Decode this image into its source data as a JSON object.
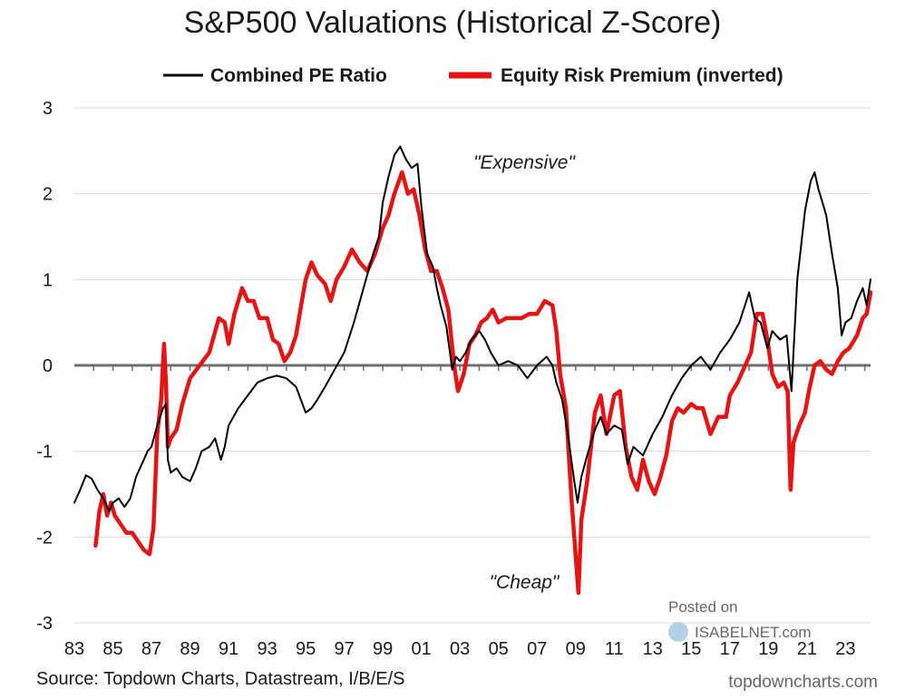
{
  "chart_data": {
    "type": "line",
    "title": "S&P500 Valuations (Historical Z-Score)",
    "ylim": [
      -3,
      3
    ],
    "yticks": [
      "3",
      "2",
      "1",
      "0",
      "-1",
      "-2",
      "-3"
    ],
    "xticks": [
      "83",
      "85",
      "87",
      "89",
      "91",
      "93",
      "95",
      "97",
      "99",
      "01",
      "03",
      "05",
      "07",
      "09",
      "11",
      "13",
      "15",
      "17",
      "19",
      "21",
      "23"
    ],
    "xrange": [
      1983,
      2024.3
    ],
    "grid": true,
    "legend_position": "top",
    "annotations": [
      "\"Expensive\"",
      "\"Cheap\""
    ],
    "series": [
      {
        "name": "Combined PE Ratio",
        "color": "#000000",
        "points": [
          [
            1983.0,
            -1.6
          ],
          [
            1983.3,
            -1.45
          ],
          [
            1983.6,
            -1.28
          ],
          [
            1983.9,
            -1.32
          ],
          [
            1984.2,
            -1.45
          ],
          [
            1984.5,
            -1.55
          ],
          [
            1984.8,
            -1.7
          ],
          [
            1985.0,
            -1.6
          ],
          [
            1985.3,
            -1.55
          ],
          [
            1985.6,
            -1.65
          ],
          [
            1985.9,
            -1.55
          ],
          [
            1986.2,
            -1.3
          ],
          [
            1986.5,
            -1.15
          ],
          [
            1986.8,
            -1.0
          ],
          [
            1987.0,
            -0.95
          ],
          [
            1987.3,
            -0.7
          ],
          [
            1987.6,
            -0.5
          ],
          [
            1987.75,
            -0.45
          ],
          [
            1987.85,
            -1.1
          ],
          [
            1988.0,
            -1.25
          ],
          [
            1988.3,
            -1.2
          ],
          [
            1988.6,
            -1.3
          ],
          [
            1989.0,
            -1.35
          ],
          [
            1989.3,
            -1.2
          ],
          [
            1989.6,
            -1.0
          ],
          [
            1990.0,
            -0.95
          ],
          [
            1990.3,
            -0.85
          ],
          [
            1990.6,
            -1.1
          ],
          [
            1990.8,
            -0.95
          ],
          [
            1991.0,
            -0.7
          ],
          [
            1991.5,
            -0.5
          ],
          [
            1992.0,
            -0.35
          ],
          [
            1992.5,
            -0.2
          ],
          [
            1993.0,
            -0.15
          ],
          [
            1993.5,
            -0.12
          ],
          [
            1994.0,
            -0.15
          ],
          [
            1994.5,
            -0.25
          ],
          [
            1995.0,
            -0.55
          ],
          [
            1995.3,
            -0.5
          ],
          [
            1995.6,
            -0.4
          ],
          [
            1996.0,
            -0.25
          ],
          [
            1996.5,
            -0.05
          ],
          [
            1997.0,
            0.15
          ],
          [
            1997.5,
            0.5
          ],
          [
            1998.0,
            0.9
          ],
          [
            1998.5,
            1.3
          ],
          [
            1998.8,
            1.5
          ],
          [
            1999.0,
            1.9
          ],
          [
            1999.3,
            2.2
          ],
          [
            1999.6,
            2.45
          ],
          [
            1999.9,
            2.55
          ],
          [
            2000.2,
            2.4
          ],
          [
            2000.5,
            2.3
          ],
          [
            2000.8,
            2.35
          ],
          [
            2001.0,
            1.85
          ],
          [
            2001.3,
            1.3
          ],
          [
            2001.6,
            1.15
          ],
          [
            2001.8,
            0.9
          ],
          [
            2002.0,
            0.7
          ],
          [
            2002.3,
            0.45
          ],
          [
            2002.6,
            -0.05
          ],
          [
            2002.8,
            0.1
          ],
          [
            2003.0,
            0.05
          ],
          [
            2003.3,
            0.15
          ],
          [
            2003.6,
            0.3
          ],
          [
            2004.0,
            0.4
          ],
          [
            2004.3,
            0.3
          ],
          [
            2004.6,
            0.15
          ],
          [
            2005.0,
            0.0
          ],
          [
            2005.5,
            0.05
          ],
          [
            2006.0,
            0.0
          ],
          [
            2006.5,
            -0.15
          ],
          [
            2007.0,
            0.0
          ],
          [
            2007.5,
            0.1
          ],
          [
            2007.8,
            0.0
          ],
          [
            2008.0,
            -0.2
          ],
          [
            2008.3,
            -0.4
          ],
          [
            2008.6,
            -0.8
          ],
          [
            2008.9,
            -1.3
          ],
          [
            2009.1,
            -1.6
          ],
          [
            2009.3,
            -1.3
          ],
          [
            2009.6,
            -1.05
          ],
          [
            2010.0,
            -0.75
          ],
          [
            2010.3,
            -0.6
          ],
          [
            2010.6,
            -0.8
          ],
          [
            2011.0,
            -0.7
          ],
          [
            2011.4,
            -0.75
          ],
          [
            2011.7,
            -1.15
          ],
          [
            2012.0,
            -0.95
          ],
          [
            2012.5,
            -1.05
          ],
          [
            2013.0,
            -0.8
          ],
          [
            2013.5,
            -0.6
          ],
          [
            2014.0,
            -0.35
          ],
          [
            2014.5,
            -0.15
          ],
          [
            2015.0,
            0.0
          ],
          [
            2015.5,
            0.1
          ],
          [
            2016.0,
            -0.05
          ],
          [
            2016.5,
            0.15
          ],
          [
            2017.0,
            0.3
          ],
          [
            2017.5,
            0.5
          ],
          [
            2018.0,
            0.85
          ],
          [
            2018.3,
            0.55
          ],
          [
            2018.6,
            0.5
          ],
          [
            2018.95,
            0.2
          ],
          [
            2019.2,
            0.4
          ],
          [
            2019.6,
            0.3
          ],
          [
            2019.95,
            0.35
          ],
          [
            2020.2,
            -0.3
          ],
          [
            2020.5,
            1.0
          ],
          [
            2020.7,
            1.4
          ],
          [
            2020.9,
            1.8
          ],
          [
            2021.2,
            2.15
          ],
          [
            2021.4,
            2.25
          ],
          [
            2021.6,
            2.05
          ],
          [
            2021.8,
            1.9
          ],
          [
            2022.0,
            1.75
          ],
          [
            2022.3,
            1.3
          ],
          [
            2022.6,
            0.9
          ],
          [
            2022.8,
            0.35
          ],
          [
            2023.0,
            0.5
          ],
          [
            2023.3,
            0.55
          ],
          [
            2023.6,
            0.75
          ],
          [
            2023.9,
            0.9
          ],
          [
            2024.1,
            0.7
          ],
          [
            2024.3,
            1.0
          ]
        ]
      },
      {
        "name": "Equity Risk Premium (inverted)",
        "color": "#e81414",
        "points": [
          [
            1984.1,
            -2.1
          ],
          [
            1984.3,
            -1.7
          ],
          [
            1984.5,
            -1.5
          ],
          [
            1984.7,
            -1.75
          ],
          [
            1984.9,
            -1.6
          ],
          [
            1985.1,
            -1.75
          ],
          [
            1985.4,
            -1.85
          ],
          [
            1985.7,
            -1.95
          ],
          [
            1986.0,
            -1.95
          ],
          [
            1986.3,
            -2.05
          ],
          [
            1986.6,
            -2.15
          ],
          [
            1986.9,
            -2.2
          ],
          [
            1987.1,
            -1.9
          ],
          [
            1987.3,
            -0.8
          ],
          [
            1987.5,
            -0.4
          ],
          [
            1987.65,
            0.25
          ],
          [
            1987.75,
            -0.2
          ],
          [
            1987.85,
            -0.95
          ],
          [
            1988.0,
            -0.85
          ],
          [
            1988.3,
            -0.75
          ],
          [
            1988.6,
            -0.45
          ],
          [
            1989.0,
            -0.15
          ],
          [
            1989.5,
            0.0
          ],
          [
            1990.0,
            0.15
          ],
          [
            1990.5,
            0.55
          ],
          [
            1990.8,
            0.5
          ],
          [
            1991.0,
            0.25
          ],
          [
            1991.3,
            0.6
          ],
          [
            1991.7,
            0.9
          ],
          [
            1992.0,
            0.75
          ],
          [
            1992.3,
            0.75
          ],
          [
            1992.6,
            0.55
          ],
          [
            1993.0,
            0.55
          ],
          [
            1993.3,
            0.3
          ],
          [
            1993.6,
            0.25
          ],
          [
            1993.9,
            0.05
          ],
          [
            1994.2,
            0.15
          ],
          [
            1994.5,
            0.35
          ],
          [
            1994.8,
            0.75
          ],
          [
            1995.0,
            1.0
          ],
          [
            1995.3,
            1.2
          ],
          [
            1995.6,
            1.05
          ],
          [
            1996.0,
            0.95
          ],
          [
            1996.3,
            0.75
          ],
          [
            1996.6,
            1.0
          ],
          [
            1997.0,
            1.15
          ],
          [
            1997.4,
            1.35
          ],
          [
            1997.8,
            1.2
          ],
          [
            1998.2,
            1.1
          ],
          [
            1998.6,
            1.3
          ],
          [
            1999.0,
            1.6
          ],
          [
            1999.3,
            1.75
          ],
          [
            1999.6,
            2.0
          ],
          [
            2000.0,
            2.25
          ],
          [
            2000.3,
            2.0
          ],
          [
            2000.6,
            2.05
          ],
          [
            2000.9,
            1.75
          ],
          [
            2001.2,
            1.35
          ],
          [
            2001.5,
            1.1
          ],
          [
            2001.8,
            1.1
          ],
          [
            2002.1,
            0.9
          ],
          [
            2002.4,
            0.65
          ],
          [
            2002.7,
            0.0
          ],
          [
            2002.9,
            -0.3
          ],
          [
            2003.2,
            -0.1
          ],
          [
            2003.5,
            0.25
          ],
          [
            2003.8,
            0.35
          ],
          [
            2004.1,
            0.5
          ],
          [
            2004.4,
            0.55
          ],
          [
            2004.7,
            0.65
          ],
          [
            2005.0,
            0.5
          ],
          [
            2005.4,
            0.55
          ],
          [
            2005.8,
            0.55
          ],
          [
            2006.2,
            0.55
          ],
          [
            2006.6,
            0.6
          ],
          [
            2007.0,
            0.6
          ],
          [
            2007.4,
            0.75
          ],
          [
            2007.8,
            0.7
          ],
          [
            2008.0,
            0.4
          ],
          [
            2008.2,
            -0.1
          ],
          [
            2008.5,
            -0.5
          ],
          [
            2008.8,
            -1.6
          ],
          [
            2009.0,
            -2.2
          ],
          [
            2009.15,
            -2.65
          ],
          [
            2009.3,
            -1.8
          ],
          [
            2009.6,
            -1.35
          ],
          [
            2010.0,
            -0.55
          ],
          [
            2010.3,
            -0.35
          ],
          [
            2010.6,
            -0.8
          ],
          [
            2011.0,
            -0.35
          ],
          [
            2011.3,
            -0.3
          ],
          [
            2011.6,
            -0.95
          ],
          [
            2011.9,
            -1.3
          ],
          [
            2012.2,
            -1.45
          ],
          [
            2012.5,
            -1.1
          ],
          [
            2012.8,
            -1.35
          ],
          [
            2013.1,
            -1.5
          ],
          [
            2013.4,
            -1.3
          ],
          [
            2013.7,
            -1.05
          ],
          [
            2014.0,
            -0.65
          ],
          [
            2014.3,
            -0.5
          ],
          [
            2014.6,
            -0.55
          ],
          [
            2015.0,
            -0.45
          ],
          [
            2015.3,
            -0.5
          ],
          [
            2015.6,
            -0.5
          ],
          [
            2016.0,
            -0.8
          ],
          [
            2016.4,
            -0.6
          ],
          [
            2016.8,
            -0.6
          ],
          [
            2017.0,
            -0.35
          ],
          [
            2017.4,
            -0.2
          ],
          [
            2017.8,
            0.0
          ],
          [
            2018.1,
            0.15
          ],
          [
            2018.4,
            0.6
          ],
          [
            2018.7,
            0.6
          ],
          [
            2018.95,
            0.3
          ],
          [
            2019.2,
            -0.1
          ],
          [
            2019.5,
            -0.25
          ],
          [
            2019.8,
            -0.2
          ],
          [
            2020.0,
            -0.3
          ],
          [
            2020.15,
            -1.45
          ],
          [
            2020.3,
            -0.9
          ],
          [
            2020.6,
            -0.7
          ],
          [
            2020.9,
            -0.55
          ],
          [
            2021.1,
            -0.3
          ],
          [
            2021.4,
            0.0
          ],
          [
            2021.7,
            0.05
          ],
          [
            2022.0,
            -0.05
          ],
          [
            2022.3,
            -0.1
          ],
          [
            2022.6,
            0.05
          ],
          [
            2022.9,
            0.15
          ],
          [
            2023.2,
            0.2
          ],
          [
            2023.6,
            0.35
          ],
          [
            2023.9,
            0.55
          ],
          [
            2024.1,
            0.6
          ],
          [
            2024.3,
            0.85
          ]
        ]
      }
    ]
  },
  "footer": {
    "source": "Source: Topdown Charts, Datastream, I/B/E/S",
    "url": "topdowncharts.com",
    "posted_on": "Posted on",
    "isabelnet": "ISABELNET.com"
  }
}
